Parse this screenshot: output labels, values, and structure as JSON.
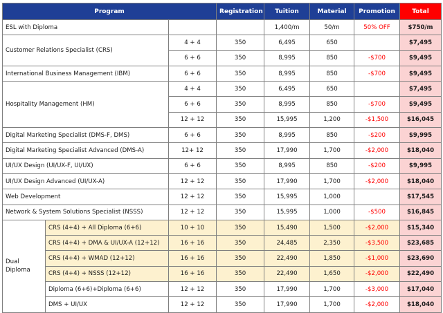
{
  "headers": {
    "program": "Program",
    "registration": "Registration",
    "tuition": "Tuition",
    "material": "Material",
    "promotion": "Promotion",
    "total": "Total"
  },
  "esl": {
    "program": "ESL with Diploma",
    "tuition": "1,400/m",
    "material": "50/m",
    "promotion": "50% OFF",
    "total": "$750/m"
  },
  "crs": {
    "program": "Customer Relations Specialist (CRS)",
    "rows": [
      {
        "hours": "4 + 4",
        "registration": "350",
        "tuition": "6,495",
        "material": "650",
        "promotion": "",
        "total": "$7,495"
      },
      {
        "hours": "6 + 6",
        "registration": "350",
        "tuition": "8,995",
        "material": "850",
        "promotion": "-$700",
        "total": "$9,495"
      }
    ]
  },
  "ibm": {
    "program": "International Business Management (IBM)",
    "hours": "6 + 6",
    "registration": "350",
    "tuition": "8,995",
    "material": "850",
    "promotion": "-$700",
    "total": "$9,495"
  },
  "hm": {
    "program": "Hospitality Management (HM)",
    "rows": [
      {
        "hours": "4 + 4",
        "registration": "350",
        "tuition": "6,495",
        "material": "650",
        "promotion": "",
        "total": "$7,495"
      },
      {
        "hours": "6 + 6",
        "registration": "350",
        "tuition": "8,995",
        "material": "850",
        "promotion": "-$700",
        "total": "$9,495"
      },
      {
        "hours": "12 + 12",
        "registration": "350",
        "tuition": "15,995",
        "material": "1,200",
        "promotion": "-$1,500",
        "total": "$16,045"
      }
    ]
  },
  "singles": [
    {
      "program": "Digital Marketing Specialist (DMS-F, DMS)",
      "hours": "6 + 6",
      "registration": "350",
      "tuition": "8,995",
      "material": "850",
      "promotion": "-$200",
      "total": "$9,995"
    },
    {
      "program": "Digital Marketing Specialist Advanced (DMS-A)",
      "hours": "12+ 12",
      "registration": "350",
      "tuition": "17,990",
      "material": "1,700",
      "promotion": "-$2,000",
      "total": "$18,040"
    },
    {
      "program": "UI/UX Design (UI/UX-F, UI/UX)",
      "hours": "6 + 6",
      "registration": "350",
      "tuition": "8,995",
      "material": "850",
      "promotion": "-$200",
      "total": "$9,995"
    },
    {
      "program": "UI/UX Design Advanced (UI/UX-A)",
      "hours": "12 + 12",
      "registration": "350",
      "tuition": "17,990",
      "material": "1,700",
      "promotion": "-$2,000",
      "total": "$18,040"
    },
    {
      "program": "Web Development",
      "hours": "12 + 12",
      "registration": "350",
      "tuition": "15,995",
      "material": "1,000",
      "promotion": "",
      "total": "$17,545"
    },
    {
      "program": "Network & System Solutions Specialist (NSSS)",
      "hours": "12 + 12",
      "registration": "350",
      "tuition": "15,995",
      "material": "1,000",
      "promotion": "-$500",
      "total": "$16,845"
    }
  ],
  "dual": {
    "label_line1": "Dual",
    "label_line2": "Diploma",
    "rows": [
      {
        "program": "CRS (4+4) + All Diploma (6+6)",
        "hours": "10 + 10",
        "registration": "350",
        "tuition": "15,490",
        "material": "1,500",
        "promotion": "-$2,000",
        "total": "$15,340",
        "highlight": true
      },
      {
        "program": "CRS (4+4) + DMA & UI/UX-A (12+12)",
        "hours": "16 + 16",
        "registration": "350",
        "tuition": "24,485",
        "material": "2,350",
        "promotion": "-$3,500",
        "total": "$23,685",
        "highlight": true
      },
      {
        "program": "CRS (4+4) + WMAD (12+12)",
        "hours": "16 + 16",
        "registration": "350",
        "tuition": "22,490",
        "material": "1,850",
        "promotion": "-$1,000",
        "total": "$23,690",
        "highlight": true
      },
      {
        "program": "CRS (4+4) + NSSS (12+12)",
        "hours": "16 + 16",
        "registration": "350",
        "tuition": "22,490",
        "material": "1,650",
        "promotion": "-$2,000",
        "total": "$22,490",
        "highlight": true
      },
      {
        "program": "Diploma (6+6)+Diploma (6+6)",
        "hours": "12 + 12",
        "registration": "350",
        "tuition": "17,990",
        "material": "1,700",
        "promotion": "-$3,000",
        "total": "$17,040",
        "highlight": false
      },
      {
        "program": "DMS + UI/UX",
        "hours": "12 + 12",
        "registration": "350",
        "tuition": "17,990",
        "material": "1,700",
        "promotion": "-$2,000",
        "total": "$18,040",
        "highlight": false
      }
    ]
  },
  "colors": {
    "header_bg": "#1f3f96",
    "total_header_bg": "#ff0000",
    "total_cell_bg": "#fbd3d3",
    "dual_highlight_bg": "#fdf1cf",
    "promotion_text": "#ff0000"
  }
}
